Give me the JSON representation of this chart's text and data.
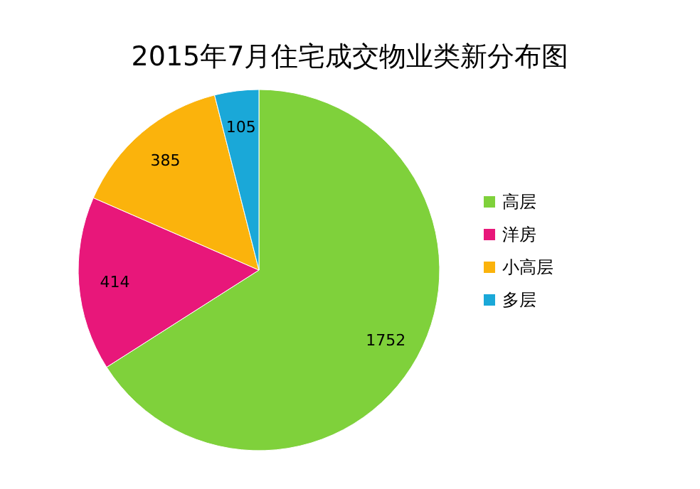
{
  "chart_data": {
    "type": "pie",
    "title": "2015年7月住宅成交物业类新分布图",
    "categories": [
      "高层",
      "洋房",
      "小高层",
      "多层"
    ],
    "values": [
      1752,
      414,
      385,
      105
    ],
    "colors": [
      "#7fd13b",
      "#e8177a",
      "#fbb30c",
      "#1aa8d8"
    ],
    "data_labels": true,
    "legend": "right"
  }
}
